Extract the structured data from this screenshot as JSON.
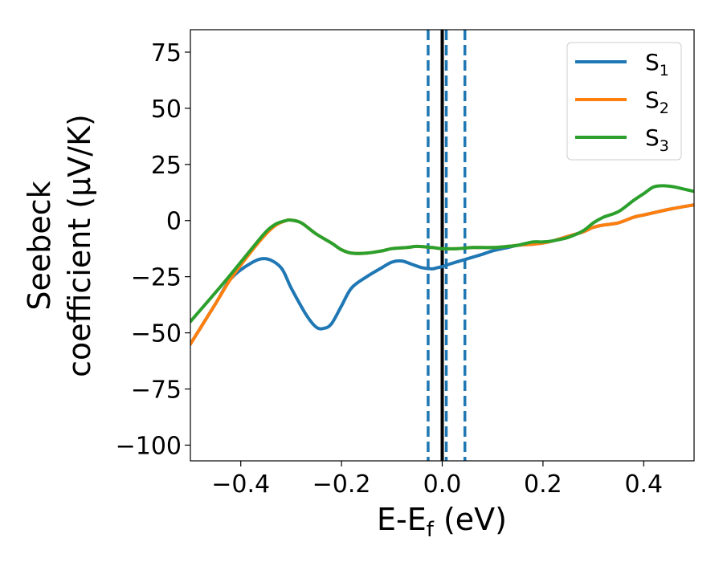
{
  "chart_data": {
    "type": "line",
    "xlabel": {
      "main": "E-E",
      "sub": "f",
      "unit": " (eV)"
    },
    "ylabel": {
      "line1": "Seebeck",
      "line2": "coefficient  (μV/K)"
    },
    "xlim": [
      -0.5,
      0.5
    ],
    "ylim": [
      -107,
      85
    ],
    "xticks": [
      -0.4,
      -0.2,
      0.0,
      0.2,
      0.4
    ],
    "xtick_labels": [
      "−0.4",
      "−0.2",
      "0.0",
      "0.2",
      "0.4"
    ],
    "yticks": [
      -100,
      -75,
      -50,
      -25,
      0,
      25,
      50,
      75
    ],
    "ytick_labels": [
      "−100",
      "−75",
      "−50",
      "−25",
      "0",
      "25",
      "50",
      "75"
    ],
    "grid": false,
    "legend_position": "top-right",
    "vertical_lines": [
      {
        "x": 0.0,
        "style": "solid",
        "color": "#000000"
      },
      {
        "x": -0.028,
        "style": "dashed",
        "color": "#1f77b4"
      },
      {
        "x": 0.008,
        "style": "dashed",
        "color": "#1f77b4"
      },
      {
        "x": 0.045,
        "style": "dashed",
        "color": "#1f77b4"
      }
    ],
    "series": [
      {
        "name": "S",
        "sub": "1",
        "color": "#1f77b4",
        "x": [
          -0.5,
          -0.45,
          -0.42,
          -0.38,
          -0.35,
          -0.32,
          -0.3,
          -0.27,
          -0.25,
          -0.235,
          -0.22,
          -0.2,
          -0.18,
          -0.15,
          -0.12,
          -0.1,
          -0.08,
          -0.06,
          -0.04,
          -0.02,
          -0.01,
          0.0,
          0.02,
          0.05,
          0.08,
          0.1,
          0.13,
          0.15,
          0.18,
          0.2,
          0.22,
          0.25,
          0.28,
          0.3,
          0.32,
          0.35,
          0.38,
          0.4,
          0.42,
          0.45,
          0.5
        ],
        "y": [
          -55,
          -37,
          -26,
          -19,
          -17,
          -21,
          -30,
          -42,
          -47.5,
          -48,
          -46,
          -38,
          -30,
          -25,
          -21,
          -18.5,
          -18,
          -19.5,
          -21,
          -21.5,
          -21,
          -20.5,
          -19,
          -17,
          -15,
          -13.5,
          -12,
          -11,
          -10.5,
          -10,
          -9,
          -7,
          -5,
          -3,
          -2,
          -1,
          1.5,
          2.5,
          3.5,
          5,
          7
        ]
      },
      {
        "name": "S",
        "sub": "2",
        "color": "#ff7f0e",
        "x": [
          -0.5,
          -0.45,
          -0.42,
          -0.38,
          -0.35,
          -0.33,
          -0.31,
          -0.3,
          -0.28,
          -0.25,
          -0.22,
          -0.2,
          -0.18,
          -0.15,
          -0.12,
          -0.1,
          -0.07,
          -0.05,
          -0.02,
          0.0,
          0.03,
          0.06,
          0.1,
          0.13,
          0.15,
          0.18,
          0.2,
          0.22,
          0.25,
          0.28,
          0.3,
          0.32,
          0.35,
          0.38,
          0.4,
          0.42,
          0.45,
          0.5
        ],
        "y": [
          -55,
          -37,
          -26,
          -14,
          -6,
          -2,
          0,
          0.2,
          -1,
          -6,
          -10,
          -13,
          -14.5,
          -14.5,
          -13.5,
          -12.5,
          -12,
          -11.5,
          -12,
          -12.5,
          -12.5,
          -12,
          -12,
          -11.5,
          -11,
          -10.5,
          -10,
          -9,
          -7,
          -5,
          -3,
          -2,
          -1,
          1.5,
          2.5,
          3.5,
          5,
          7
        ]
      },
      {
        "name": "S",
        "sub": "3",
        "color": "#2ca02c",
        "x": [
          -0.5,
          -0.45,
          -0.42,
          -0.38,
          -0.35,
          -0.33,
          -0.31,
          -0.3,
          -0.28,
          -0.25,
          -0.22,
          -0.2,
          -0.18,
          -0.15,
          -0.12,
          -0.1,
          -0.07,
          -0.05,
          -0.02,
          0.0,
          0.03,
          0.06,
          0.1,
          0.13,
          0.15,
          0.18,
          0.2,
          0.22,
          0.25,
          0.28,
          0.3,
          0.32,
          0.35,
          0.38,
          0.4,
          0.42,
          0.44,
          0.46,
          0.48,
          0.5
        ],
        "y": [
          -45,
          -32,
          -24,
          -13,
          -5,
          -1.5,
          0,
          0.2,
          -1,
          -6,
          -10,
          -13,
          -14.5,
          -14.5,
          -13.5,
          -12.5,
          -12,
          -11.5,
          -12,
          -12.5,
          -12.5,
          -12,
          -12,
          -11.5,
          -11,
          -9.5,
          -9.5,
          -9,
          -7.5,
          -4.5,
          -1,
          1.5,
          4,
          9,
          12,
          15,
          15.5,
          15,
          14,
          13
        ]
      }
    ]
  }
}
